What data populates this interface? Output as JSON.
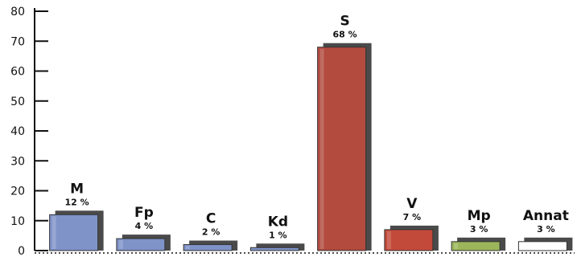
{
  "chart_data": {
    "type": "bar",
    "categories": [
      "M",
      "Fp",
      "C",
      "Kd",
      "S",
      "V",
      "Mp",
      "Annat"
    ],
    "values": [
      12,
      4,
      2,
      1,
      68,
      7,
      3,
      3
    ],
    "value_labels": [
      "12 %",
      "4 %",
      "2 %",
      "1 %",
      "68 %",
      "7 %",
      "3 %",
      "3 %"
    ],
    "colors": [
      "#7f93c8",
      "#7f93c8",
      "#7f93c8",
      "#7f93c8",
      "#b34b3f",
      "#c24a3a",
      "#9bb65a",
      "#ffffff"
    ],
    "shadow_color": "#4a4a4a",
    "ylim": [
      0,
      80
    ],
    "yticks": [
      0,
      10,
      20,
      30,
      40,
      50,
      60,
      70,
      80
    ],
    "title": "",
    "xlabel": "",
    "ylabel": "",
    "grid": false,
    "legend": "none"
  }
}
